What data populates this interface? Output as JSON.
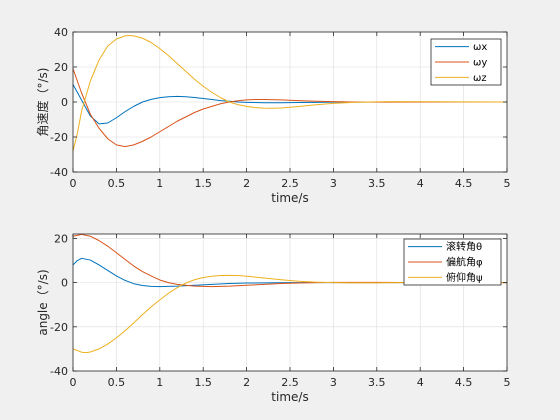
{
  "chart_data": [
    {
      "type": "line",
      "xlabel": "time/s",
      "ylabel": "角速度（°/s)",
      "xlim": [
        0,
        5
      ],
      "ylim": [
        -40,
        40
      ],
      "xticks": [
        0,
        0.5,
        1,
        1.5,
        2,
        2.5,
        3,
        3.5,
        4,
        4.5,
        5
      ],
      "yticks": [
        -40,
        -20,
        0,
        20,
        40
      ],
      "xtick_labels": [
        "0",
        "0.5",
        "1",
        "1.5",
        "2",
        "2.5",
        "3",
        "3.5",
        "4",
        "4.5",
        "5"
      ],
      "ytick_labels": [
        "-40",
        "-20",
        "0",
        "20",
        "40"
      ],
      "grid": true,
      "legend_position": "top-right",
      "series": [
        {
          "name": "ωx",
          "color": "#0072BD",
          "points": [
            [
              0,
              10
            ],
            [
              0.1,
              1
            ],
            [
              0.2,
              -8
            ],
            [
              0.3,
              -12.5
            ],
            [
              0.4,
              -12
            ],
            [
              0.5,
              -9
            ],
            [
              0.6,
              -5.5
            ],
            [
              0.7,
              -2.5
            ],
            [
              0.8,
              0
            ],
            [
              0.9,
              1.5
            ],
            [
              1.0,
              2.5
            ],
            [
              1.1,
              3
            ],
            [
              1.2,
              3.2
            ],
            [
              1.3,
              3
            ],
            [
              1.4,
              2.6
            ],
            [
              1.5,
              2
            ],
            [
              1.6,
              1.4
            ],
            [
              1.7,
              0.8
            ],
            [
              1.8,
              0.4
            ],
            [
              1.9,
              0
            ],
            [
              2.0,
              -0.2
            ],
            [
              2.2,
              -0.4
            ],
            [
              2.4,
              -0.4
            ],
            [
              2.6,
              -0.3
            ],
            [
              2.8,
              -0.2
            ],
            [
              3.0,
              -0.1
            ],
            [
              3.5,
              0
            ],
            [
              4.0,
              0
            ],
            [
              4.5,
              0
            ],
            [
              5.0,
              0
            ]
          ]
        },
        {
          "name": "ωy",
          "color": "#D95319",
          "points": [
            [
              0,
              19
            ],
            [
              0.1,
              5
            ],
            [
              0.2,
              -7
            ],
            [
              0.3,
              -15
            ],
            [
              0.4,
              -21
            ],
            [
              0.5,
              -24.5
            ],
            [
              0.6,
              -25.5
            ],
            [
              0.7,
              -24.5
            ],
            [
              0.8,
              -22.5
            ],
            [
              0.9,
              -20
            ],
            [
              1.0,
              -17
            ],
            [
              1.1,
              -14
            ],
            [
              1.2,
              -11
            ],
            [
              1.3,
              -8.5
            ],
            [
              1.4,
              -6
            ],
            [
              1.5,
              -4
            ],
            [
              1.6,
              -2.5
            ],
            [
              1.7,
              -1
            ],
            [
              1.8,
              0
            ],
            [
              1.9,
              0.7
            ],
            [
              2.0,
              1.2
            ],
            [
              2.1,
              1.4
            ],
            [
              2.2,
              1.4
            ],
            [
              2.4,
              1.2
            ],
            [
              2.6,
              0.8
            ],
            [
              2.8,
              0.4
            ],
            [
              3.0,
              0.2
            ],
            [
              3.2,
              0
            ],
            [
              3.5,
              -0.1
            ],
            [
              4.0,
              0
            ],
            [
              4.5,
              0
            ],
            [
              5.0,
              0
            ]
          ]
        },
        {
          "name": "ωz",
          "color": "#EDB120",
          "points": [
            [
              0,
              -28
            ],
            [
              0.05,
              -18
            ],
            [
              0.1,
              -5
            ],
            [
              0.2,
              12
            ],
            [
              0.3,
              24
            ],
            [
              0.4,
              32
            ],
            [
              0.5,
              36
            ],
            [
              0.6,
              37.8
            ],
            [
              0.65,
              38
            ],
            [
              0.7,
              37.8
            ],
            [
              0.8,
              36.5
            ],
            [
              0.9,
              34
            ],
            [
              1.0,
              30.5
            ],
            [
              1.1,
              26.5
            ],
            [
              1.2,
              22
            ],
            [
              1.3,
              17.5
            ],
            [
              1.4,
              13
            ],
            [
              1.5,
              9
            ],
            [
              1.6,
              5.5
            ],
            [
              1.7,
              2.5
            ],
            [
              1.8,
              0
            ],
            [
              1.9,
              -1.5
            ],
            [
              2.0,
              -2.5
            ],
            [
              2.1,
              -3.2
            ],
            [
              2.2,
              -3.5
            ],
            [
              2.3,
              -3.6
            ],
            [
              2.4,
              -3.4
            ],
            [
              2.6,
              -2.6
            ],
            [
              2.8,
              -1.6
            ],
            [
              3.0,
              -0.8
            ],
            [
              3.2,
              -0.3
            ],
            [
              3.4,
              0
            ],
            [
              3.6,
              0.2
            ],
            [
              4.0,
              0.2
            ],
            [
              4.5,
              0.1
            ],
            [
              5.0,
              0
            ]
          ]
        }
      ]
    },
    {
      "type": "line",
      "xlabel": "time/s",
      "ylabel": "angle（°/s)",
      "xlim": [
        0,
        5
      ],
      "ylim": [
        -40,
        22
      ],
      "xticks": [
        0,
        0.5,
        1,
        1.5,
        2,
        2.5,
        3,
        3.5,
        4,
        4.5,
        5
      ],
      "yticks": [
        -40,
        -20,
        0,
        20
      ],
      "xtick_labels": [
        "0",
        "0.5",
        "1",
        "1.5",
        "2",
        "2.5",
        "3",
        "3.5",
        "4",
        "4.5",
        "5"
      ],
      "ytick_labels": [
        "-40",
        "-20",
        "0",
        "20"
      ],
      "grid": true,
      "legend_position": "top-right",
      "series": [
        {
          "name": "滚转角θ",
          "color": "#0072BD",
          "points": [
            [
              0,
              8
            ],
            [
              0.05,
              10
            ],
            [
              0.1,
              11
            ],
            [
              0.2,
              10.2
            ],
            [
              0.3,
              8
            ],
            [
              0.4,
              5.5
            ],
            [
              0.5,
              3
            ],
            [
              0.6,
              1
            ],
            [
              0.7,
              -0.5
            ],
            [
              0.8,
              -1.3
            ],
            [
              0.9,
              -1.7
            ],
            [
              1.0,
              -1.8
            ],
            [
              1.2,
              -1.6
            ],
            [
              1.4,
              -1.2
            ],
            [
              1.6,
              -0.8
            ],
            [
              1.8,
              -0.4
            ],
            [
              2.0,
              -0.2
            ],
            [
              2.5,
              0
            ],
            [
              3.0,
              0
            ],
            [
              4.0,
              0
            ],
            [
              5.0,
              0
            ]
          ]
        },
        {
          "name": "偏航角φ",
          "color": "#D95319",
          "points": [
            [
              0,
              21
            ],
            [
              0.1,
              21.8
            ],
            [
              0.2,
              21
            ],
            [
              0.3,
              19
            ],
            [
              0.4,
              16.5
            ],
            [
              0.5,
              13.5
            ],
            [
              0.6,
              10.5
            ],
            [
              0.7,
              7.5
            ],
            [
              0.8,
              5
            ],
            [
              0.9,
              3
            ],
            [
              1.0,
              1.2
            ],
            [
              1.1,
              0
            ],
            [
              1.2,
              -0.8
            ],
            [
              1.4,
              -1.6
            ],
            [
              1.6,
              -1.8
            ],
            [
              1.8,
              -1.6
            ],
            [
              2.0,
              -1.2
            ],
            [
              2.2,
              -0.8
            ],
            [
              2.4,
              -0.4
            ],
            [
              2.6,
              -0.2
            ],
            [
              2.8,
              0
            ],
            [
              3.0,
              0.1
            ],
            [
              3.5,
              0.1
            ],
            [
              4.0,
              0
            ],
            [
              5.0,
              0
            ]
          ]
        },
        {
          "name": "俯仰角ψ",
          "color": "#EDB120",
          "points": [
            [
              0,
              -30
            ],
            [
              0.1,
              -31.5
            ],
            [
              0.15,
              -31.7
            ],
            [
              0.2,
              -31.4
            ],
            [
              0.3,
              -30
            ],
            [
              0.4,
              -27.8
            ],
            [
              0.5,
              -25
            ],
            [
              0.6,
              -21.8
            ],
            [
              0.7,
              -18.2
            ],
            [
              0.8,
              -14.5
            ],
            [
              0.9,
              -11
            ],
            [
              1.0,
              -7.8
            ],
            [
              1.1,
              -4.8
            ],
            [
              1.2,
              -2.3
            ],
            [
              1.3,
              -0.2
            ],
            [
              1.4,
              1.3
            ],
            [
              1.5,
              2.3
            ],
            [
              1.6,
              2.9
            ],
            [
              1.7,
              3.2
            ],
            [
              1.8,
              3.3
            ],
            [
              1.9,
              3.2
            ],
            [
              2.0,
              2.9
            ],
            [
              2.2,
              2.1
            ],
            [
              2.4,
              1.3
            ],
            [
              2.6,
              0.6
            ],
            [
              2.8,
              0.2
            ],
            [
              3.0,
              0
            ],
            [
              3.2,
              -0.1
            ],
            [
              3.5,
              -0.1
            ],
            [
              4.0,
              0
            ],
            [
              5.0,
              0
            ]
          ]
        }
      ]
    }
  ]
}
